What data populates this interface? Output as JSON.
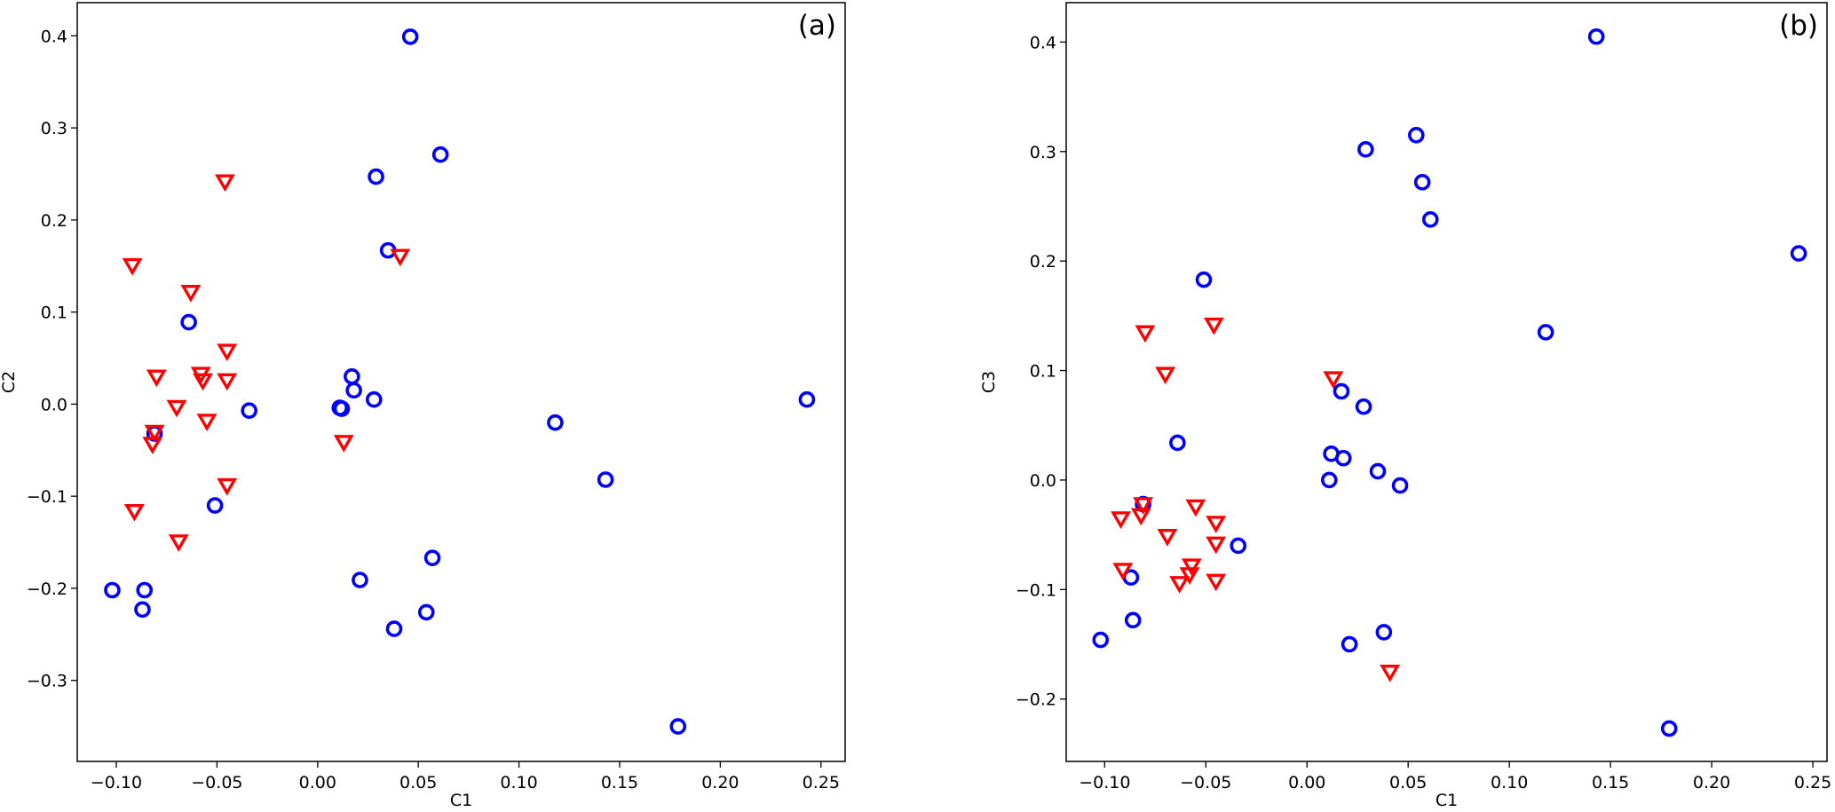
{
  "chart_data": [
    {
      "type": "scatter",
      "panel_label": "(a)",
      "xlabel": "C1",
      "ylabel": "C2",
      "xlim": [
        -0.1194,
        0.262
      ],
      "ylim": [
        -0.388,
        0.436
      ],
      "grid": false,
      "xticks": [
        -0.1,
        -0.05,
        0.0,
        0.05,
        0.1,
        0.15,
        0.2,
        0.25
      ],
      "xtick_labels": [
        "−0.10",
        "−0.05",
        "0.00",
        "0.05",
        "0.10",
        "0.15",
        "0.20",
        "0.25"
      ],
      "yticks": [
        -0.3,
        -0.2,
        -0.1,
        0.0,
        0.1,
        0.2,
        0.3,
        0.4
      ],
      "ytick_labels": [
        "−0.3",
        "−0.2",
        "−0.1",
        "0.0",
        "0.1",
        "0.2",
        "0.3",
        "0.4"
      ],
      "series": [
        {
          "marker": "circle",
          "color": "#0000ff",
          "points": [
            [
              0.046,
              0.399
            ],
            [
              0.061,
              0.271
            ],
            [
              0.029,
              0.247
            ],
            [
              0.035,
              0.167
            ],
            [
              -0.064,
              0.089
            ],
            [
              0.017,
              0.03
            ],
            [
              0.018,
              0.015
            ],
            [
              0.011,
              -0.004
            ],
            [
              0.012,
              -0.005
            ],
            [
              0.028,
              0.005
            ],
            [
              -0.034,
              -0.007
            ],
            [
              0.118,
              -0.02
            ],
            [
              0.143,
              -0.082
            ],
            [
              0.243,
              0.005
            ],
            [
              -0.051,
              -0.11
            ],
            [
              -0.081,
              -0.032
            ],
            [
              -0.102,
              -0.202
            ],
            [
              -0.086,
              -0.202
            ],
            [
              -0.087,
              -0.223
            ],
            [
              0.021,
              -0.191
            ],
            [
              0.057,
              -0.167
            ],
            [
              0.054,
              -0.226
            ],
            [
              0.038,
              -0.244
            ],
            [
              0.179,
              -0.35
            ]
          ]
        },
        {
          "marker": "triangle-down",
          "color": "#ff0000",
          "points": [
            [
              -0.092,
              0.151
            ],
            [
              -0.091,
              -0.116
            ],
            [
              -0.08,
              0.03
            ],
            [
              -0.081,
              -0.03
            ],
            [
              -0.082,
              -0.043
            ],
            [
              -0.07,
              -0.003
            ],
            [
              -0.069,
              -0.149
            ],
            [
              -0.063,
              0.122
            ],
            [
              -0.058,
              0.033
            ],
            [
              -0.057,
              0.026
            ],
            [
              -0.055,
              -0.018
            ],
            [
              -0.046,
              0.242
            ],
            [
              -0.045,
              0.058
            ],
            [
              -0.045,
              0.026
            ],
            [
              -0.045,
              -0.088
            ],
            [
              0.013,
              -0.041
            ],
            [
              0.041,
              0.161
            ]
          ]
        }
      ]
    },
    {
      "type": "scatter",
      "panel_label": "(b)",
      "xlabel": "C1",
      "ylabel": "C3",
      "xlim": [
        -0.119,
        0.257
      ],
      "ylim": [
        -0.257,
        0.436
      ],
      "grid": false,
      "xticks": [
        -0.1,
        -0.05,
        0.0,
        0.05,
        0.1,
        0.15,
        0.2,
        0.25
      ],
      "xtick_labels": [
        "−0.10",
        "−0.05",
        "0.00",
        "0.05",
        "0.10",
        "0.15",
        "0.20",
        "0.25"
      ],
      "yticks": [
        -0.2,
        -0.1,
        0.0,
        0.1,
        0.2,
        0.3,
        0.4
      ],
      "ytick_labels": [
        "−0.2",
        "−0.1",
        "0.0",
        "0.1",
        "0.2",
        "0.3",
        "0.4"
      ],
      "series": [
        {
          "marker": "circle",
          "color": "#0000ff",
          "points": [
            [
              0.046,
              -0.005
            ],
            [
              0.061,
              0.238
            ],
            [
              0.029,
              0.302
            ],
            [
              0.035,
              0.008
            ],
            [
              -0.064,
              0.034
            ],
            [
              0.017,
              0.081
            ],
            [
              0.018,
              0.02
            ],
            [
              0.011,
              0.0
            ],
            [
              0.012,
              0.024
            ],
            [
              0.028,
              0.067
            ],
            [
              -0.034,
              -0.06
            ],
            [
              0.118,
              0.135
            ],
            [
              0.143,
              0.405
            ],
            [
              0.243,
              0.207
            ],
            [
              -0.051,
              0.183
            ],
            [
              -0.081,
              -0.022
            ],
            [
              -0.102,
              -0.146
            ],
            [
              -0.086,
              -0.128
            ],
            [
              -0.087,
              -0.089
            ],
            [
              0.021,
              -0.15
            ],
            [
              0.057,
              0.272
            ],
            [
              0.054,
              0.315
            ],
            [
              0.038,
              -0.139
            ],
            [
              0.179,
              -0.227
            ]
          ]
        },
        {
          "marker": "triangle-down",
          "color": "#ff0000",
          "points": [
            [
              -0.092,
              -0.035
            ],
            [
              -0.091,
              -0.082
            ],
            [
              -0.08,
              0.135
            ],
            [
              -0.081,
              -0.022
            ],
            [
              -0.082,
              -0.032
            ],
            [
              -0.07,
              0.097
            ],
            [
              -0.069,
              -0.051
            ],
            [
              -0.063,
              -0.094
            ],
            [
              -0.058,
              -0.086
            ],
            [
              -0.057,
              -0.078
            ],
            [
              -0.055,
              -0.024
            ],
            [
              -0.046,
              0.142
            ],
            [
              -0.045,
              -0.039
            ],
            [
              -0.045,
              -0.058
            ],
            [
              -0.045,
              -0.092
            ],
            [
              0.013,
              0.093
            ],
            [
              0.041,
              -0.175
            ]
          ]
        }
      ]
    }
  ]
}
